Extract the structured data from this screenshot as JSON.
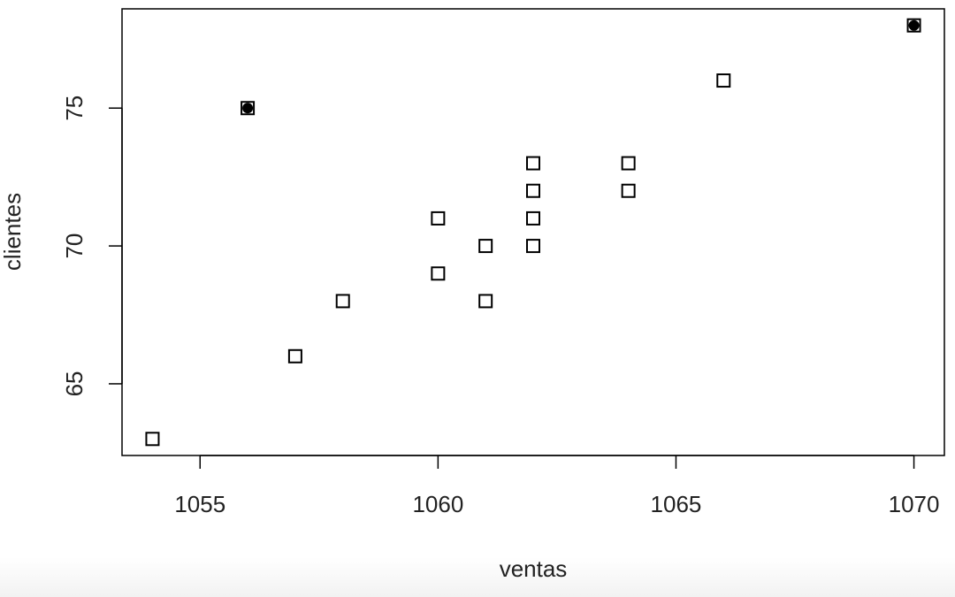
{
  "chart_data": {
    "type": "scatter",
    "x_label": "ventas",
    "y_label": "clientes",
    "series": [
      {
        "color": "#000000",
        "marker": "square",
        "x": [
          1054,
          1056,
          1057,
          1058,
          1060,
          1060,
          1061,
          1061,
          1062,
          1062,
          1062,
          1062,
          1064,
          1064,
          1066,
          1070
        ],
        "y": [
          63,
          75,
          66,
          68,
          71,
          69,
          70,
          68,
          73,
          72,
          71,
          70,
          73,
          72,
          76,
          78
        ]
      },
      {
        "color": "#000000",
        "marker": "circle",
        "x": [
          1056,
          1070
        ],
        "y": [
          75,
          78
        ]
      }
    ],
    "xlim": [
      1053.36,
      1070.64
    ],
    "ylim": [
      62.4,
      78.6
    ],
    "xticks": [
      1055,
      1060,
      1065,
      1070
    ],
    "yticks": [
      65,
      70,
      75
    ],
    "grid": false
  }
}
